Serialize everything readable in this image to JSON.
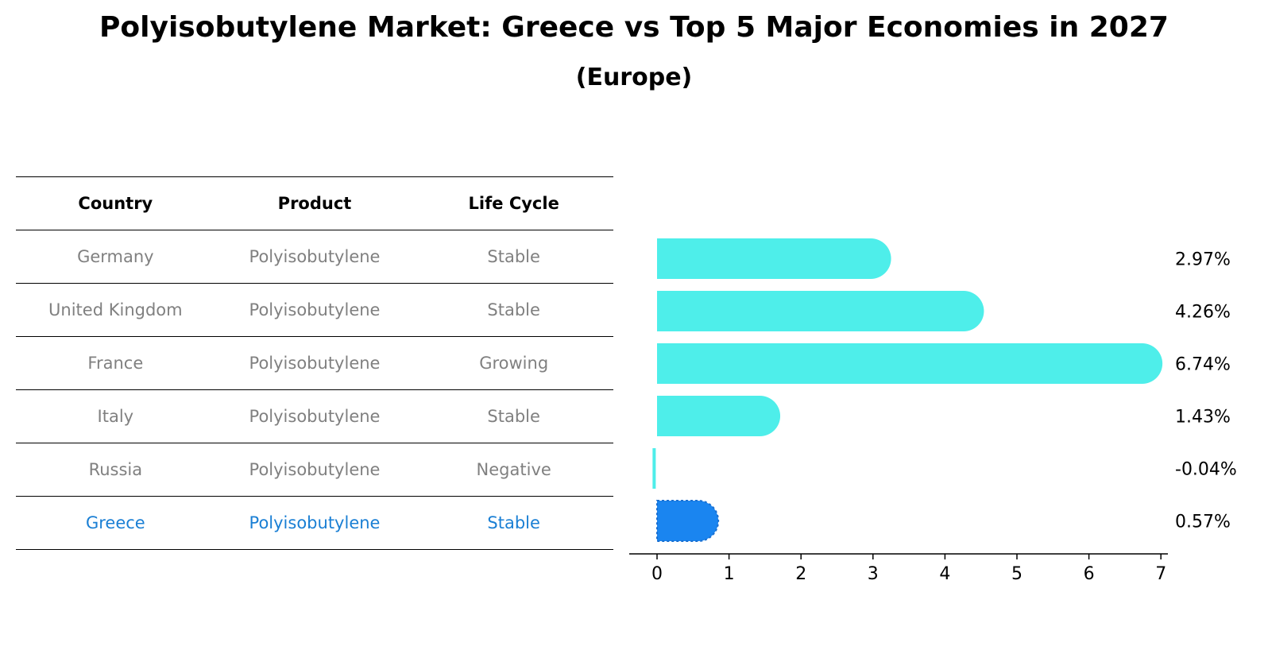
{
  "title": "Polyisobutylene Market: Greece vs Top 5 Major Economies in 2027",
  "subtitle": "(Europe)",
  "table": {
    "headers": [
      "Country",
      "Product",
      "Life Cycle"
    ],
    "rows": [
      {
        "country": "Germany",
        "product": "Polyisobutylene",
        "life_cycle": "Stable"
      },
      {
        "country": "United Kingdom",
        "product": "Polyisobutylene",
        "life_cycle": "Stable"
      },
      {
        "country": "France",
        "product": "Polyisobutylene",
        "life_cycle": "Growing"
      },
      {
        "country": "Italy",
        "product": "Polyisobutylene",
        "life_cycle": "Stable"
      },
      {
        "country": "Russia",
        "product": "Polyisobutylene",
        "life_cycle": "Negative"
      },
      {
        "country": "Greece",
        "product": "Polyisobutylene",
        "life_cycle": "Stable"
      }
    ]
  },
  "colors": {
    "bar": "#4eeeea",
    "highlight": "#1a85f0",
    "highlight_text": "#1a7fd4",
    "muted_text": "#808080"
  },
  "chart_data": {
    "type": "bar",
    "orientation": "horizontal",
    "categories": [
      "Germany",
      "United Kingdom",
      "France",
      "Italy",
      "Russia",
      "Greece"
    ],
    "values": [
      2.97,
      4.26,
      6.74,
      1.43,
      -0.04,
      0.57
    ],
    "value_labels": [
      "2.97%",
      "4.26%",
      "6.74%",
      "1.43%",
      "-0.04%",
      "0.57%"
    ],
    "highlight_category": "Greece",
    "xlim": [
      -0.4,
      7.1
    ],
    "xticks": [
      0,
      1,
      2,
      3,
      4,
      5,
      6,
      7
    ],
    "grid": false
  }
}
